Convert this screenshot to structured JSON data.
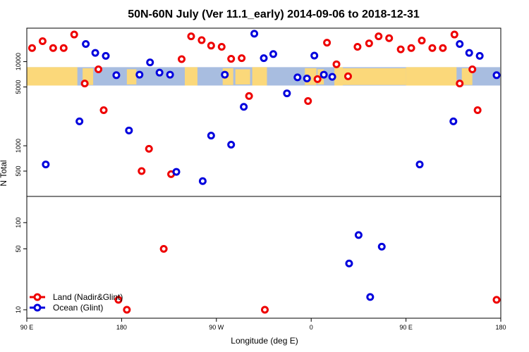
{
  "chart_data": {
    "type": "scatter",
    "title": "50N-60N July (Ver 11.1_early)   2014-09-06 to 2018-12-31",
    "xlabel": "Longitude (deg E)",
    "ylabel": "N Total",
    "x_scale": "longitude from 90E eastward, wrapping through 180 and 0, back to 180",
    "xlim": [
      0,
      450
    ],
    "x_ticks": [
      {
        "pos": 0,
        "label": "90 E"
      },
      {
        "pos": 90,
        "label": "180"
      },
      {
        "pos": 180,
        "label": "90 W"
      },
      {
        "pos": 270,
        "label": "0"
      },
      {
        "pos": 360,
        "label": "90 E"
      },
      {
        "pos": 450,
        "label": "180"
      }
    ],
    "panels": {
      "upper": {
        "scale": "log",
        "ylim": [
          250,
          25000
        ],
        "y_ticks": [
          500,
          1000,
          5000,
          10000
        ],
        "map_strip_lat_range": "50N-60N (land/ocean background)"
      },
      "lower": {
        "scale": "log",
        "ylim": [
          8,
          200
        ],
        "y_ticks": [
          10,
          50,
          100
        ]
      }
    },
    "colors": {
      "land": "#ee0000",
      "ocean": "#0000dd",
      "map_land": "#fbd87a",
      "map_ocean": "#a8bde0"
    },
    "series": [
      {
        "name": "Land (Nadir&Glint)",
        "panel_upper": [
          {
            "x": 5,
            "y": 14500
          },
          {
            "x": 15,
            "y": 17500
          },
          {
            "x": 25,
            "y": 14500
          },
          {
            "x": 35,
            "y": 14500
          },
          {
            "x": 45,
            "y": 21000
          },
          {
            "x": 55,
            "y": 5500
          },
          {
            "x": 68,
            "y": 8100
          },
          {
            "x": 73,
            "y": 2650
          },
          {
            "x": 109,
            "y": 500
          },
          {
            "x": 116,
            "y": 920
          },
          {
            "x": 137,
            "y": 460
          },
          {
            "x": 147,
            "y": 10700
          },
          {
            "x": 156,
            "y": 20000
          },
          {
            "x": 166,
            "y": 18000
          },
          {
            "x": 175,
            "y": 15500
          },
          {
            "x": 185,
            "y": 15000
          },
          {
            "x": 194,
            "y": 10800
          },
          {
            "x": 204,
            "y": 11000
          },
          {
            "x": 211,
            "y": 3900
          },
          {
            "x": 267,
            "y": 3400
          },
          {
            "x": 276,
            "y": 6200
          },
          {
            "x": 285,
            "y": 16800
          },
          {
            "x": 294,
            "y": 9300
          },
          {
            "x": 305,
            "y": 6700
          },
          {
            "x": 314,
            "y": 15000
          },
          {
            "x": 325,
            "y": 16500
          },
          {
            "x": 334,
            "y": 20000
          },
          {
            "x": 344,
            "y": 19000
          },
          {
            "x": 355,
            "y": 14000
          },
          {
            "x": 365,
            "y": 14500
          },
          {
            "x": 375,
            "y": 17800
          },
          {
            "x": 385,
            "y": 14500
          },
          {
            "x": 395,
            "y": 14500
          },
          {
            "x": 406,
            "y": 21000
          },
          {
            "x": 411,
            "y": 5500
          },
          {
            "x": 423,
            "y": 8100
          },
          {
            "x": 428,
            "y": 2650
          }
        ],
        "panel_lower": [
          {
            "x": 87,
            "y": 13
          },
          {
            "x": 95,
            "y": 10
          },
          {
            "x": 130,
            "y": 50
          },
          {
            "x": 226,
            "y": 10
          },
          {
            "x": 446,
            "y": 13
          }
        ]
      },
      {
        "name": "Ocean (Glint)",
        "panel_upper": [
          {
            "x": 18,
            "y": 600
          },
          {
            "x": 50,
            "y": 1950
          },
          {
            "x": 56,
            "y": 16200
          },
          {
            "x": 65,
            "y": 12700
          },
          {
            "x": 75,
            "y": 11700
          },
          {
            "x": 85,
            "y": 6900
          },
          {
            "x": 97,
            "y": 1520
          },
          {
            "x": 107,
            "y": 7000
          },
          {
            "x": 117,
            "y": 9800
          },
          {
            "x": 126,
            "y": 7400
          },
          {
            "x": 136,
            "y": 7000
          },
          {
            "x": 142,
            "y": 490
          },
          {
            "x": 167,
            "y": 380
          },
          {
            "x": 175,
            "y": 1320
          },
          {
            "x": 188,
            "y": 7000
          },
          {
            "x": 194,
            "y": 1030
          },
          {
            "x": 206,
            "y": 2900
          },
          {
            "x": 216,
            "y": 21500
          },
          {
            "x": 225,
            "y": 11000
          },
          {
            "x": 234,
            "y": 12300
          },
          {
            "x": 247,
            "y": 4200
          },
          {
            "x": 257,
            "y": 6500
          },
          {
            "x": 266,
            "y": 6300
          },
          {
            "x": 273,
            "y": 11800
          },
          {
            "x": 282,
            "y": 7000
          },
          {
            "x": 290,
            "y": 6600
          },
          {
            "x": 373,
            "y": 600
          },
          {
            "x": 405,
            "y": 1950
          },
          {
            "x": 411,
            "y": 16200
          },
          {
            "x": 420,
            "y": 12700
          },
          {
            "x": 430,
            "y": 11700
          },
          {
            "x": 446,
            "y": 6900
          }
        ],
        "panel_lower": [
          {
            "x": 306,
            "y": 34
          },
          {
            "x": 315,
            "y": 72
          },
          {
            "x": 326,
            "y": 14
          },
          {
            "x": 337,
            "y": 53
          }
        ]
      }
    ],
    "legend": {
      "position": "bottom-left",
      "entries": [
        "Land (Nadir&Glint)",
        "Ocean (Glint)"
      ]
    }
  }
}
